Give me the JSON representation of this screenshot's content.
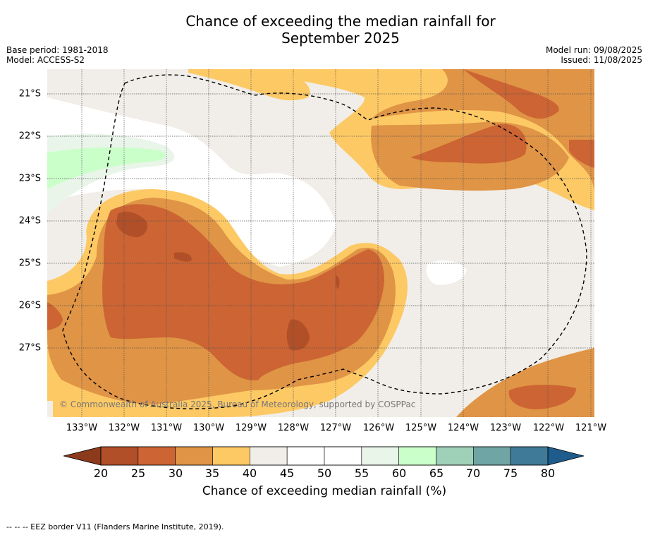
{
  "title_line1": "Chance of exceeding the median rainfall for",
  "title_line2": "September 2025",
  "base_period": "Base period: 1981-2018",
  "model": "Model: ACCESS-S2",
  "model_run": "Model run: 09/08/2025",
  "issued": "Issued: 11/08/2025",
  "copyright": "© Commonwealth of Australia 2025, Bureau of Meteorology, supported by COSPPac",
  "lat_labels": [
    "21°S",
    "22°S",
    "23°S",
    "24°S",
    "25°S",
    "26°S",
    "27°S"
  ],
  "lon_labels": [
    "133°W",
    "132°W",
    "131°W",
    "130°W",
    "129°W",
    "128°W",
    "127°W",
    "126°W",
    "125°W",
    "124°W",
    "123°W",
    "122°W",
    "121°W"
  ],
  "colorbar": {
    "ticks": [
      "20",
      "25",
      "30",
      "35",
      "40",
      "45",
      "50",
      "55",
      "60",
      "65",
      "70",
      "75",
      "80"
    ],
    "title": "Chance of exceeding median rainfall (%)",
    "under_color": "#8c3a1c",
    "over_color": "#1f5c8c",
    "colors": [
      "#b04f28",
      "#cc6433",
      "#e09445",
      "#fdc965",
      "#f1eee9",
      "#ffffff",
      "#ffffff",
      "#eaf5ea",
      "#caffca",
      "#9fd1b8",
      "#6fa5a5",
      "#3f7a98"
    ]
  },
  "footnote": "--  --  -- EEZ border V11 (Flanders Marine Institute, 2019)."
}
